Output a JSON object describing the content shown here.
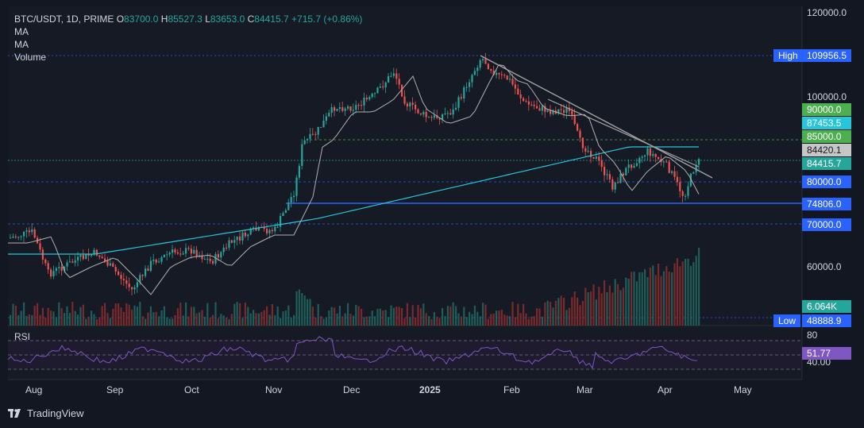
{
  "legend": {
    "symbol": "BTC/USDT, 1D, PRIME",
    "open_label": "O",
    "open": "83700.0",
    "high_label": "H",
    "high": "85527.3",
    "low_label": "L",
    "low": "83653.0",
    "close_label": "C",
    "close": "84415.7",
    "change": "+715.7 (+0.86%)",
    "ma1": "MA",
    "ma2": "MA",
    "volume": "Volume"
  },
  "price_axis": {
    "ticks": [
      "120000.0",
      "100000.0",
      "60000.0"
    ]
  },
  "tags": {
    "high_word": "High",
    "high_value": "109956.5",
    "level_90000": "90000.0",
    "ma_value": "87453.5",
    "level_85000": "85000.0",
    "ma2_value": "84420.1",
    "close_value": "84415.7",
    "level_80000": "80000.0",
    "support_value": "74806.0",
    "level_70000": "70000.0",
    "volume_value": "6.064K",
    "low_word": "Low",
    "low_value": "48888.9"
  },
  "rsi": {
    "label": "RSI",
    "tick_80": "80",
    "tick_40": "40.00",
    "value": "51.77"
  },
  "time_axis": {
    "months": [
      "Aug",
      "Sep",
      "Oct",
      "Nov",
      "Dec",
      "2025",
      "Feb",
      "Mar",
      "Apr",
      "May"
    ]
  },
  "branding": {
    "name": "TradingView"
  },
  "colors": {
    "background": "#131722",
    "up": "#26a69a",
    "down": "#ef5350",
    "ma_slow": "#26c6da",
    "ma_fast": "#b0b0b0",
    "support": "#2962ff",
    "rsi": "#7e57c2"
  }
}
